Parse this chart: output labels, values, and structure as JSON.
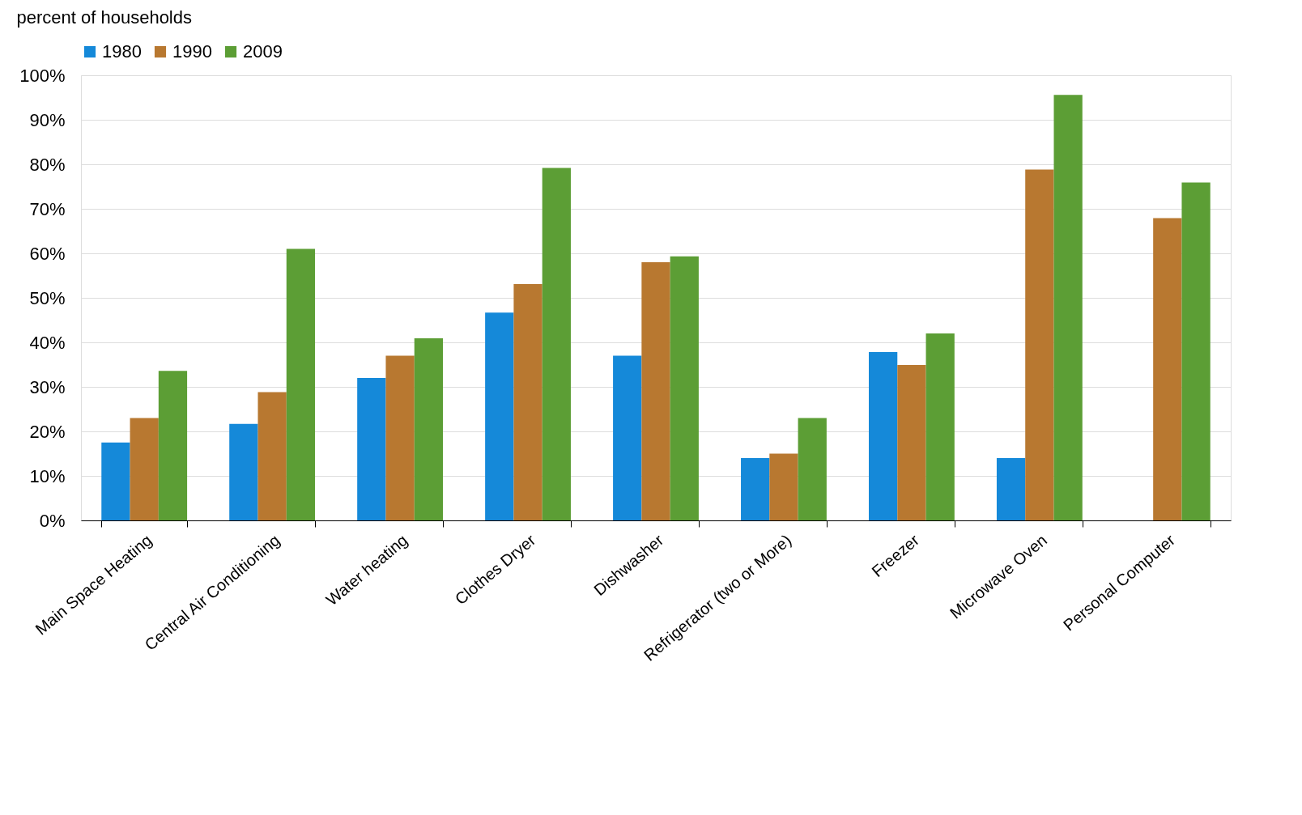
{
  "chart_data": {
    "type": "bar",
    "ylabel": "percent of households",
    "categories": [
      "Main Space Heating",
      "Central Air Conditioning",
      "Water heating",
      "Clothes Dryer",
      "Dishwasher",
      "Refrigerator (two or More)",
      "Freezer",
      "Microwave Oven",
      "Personal Computer"
    ],
    "series": [
      {
        "name": "1980",
        "color": "#1589d9",
        "values": [
          17.5,
          21.7,
          32,
          46.7,
          37,
          14,
          37.8,
          14,
          null
        ]
      },
      {
        "name": "1990",
        "color": "#b87830",
        "values": [
          23,
          28.8,
          37,
          53.1,
          58,
          15,
          34.9,
          78.8,
          67.9
        ]
      },
      {
        "name": "2009",
        "color": "#5c9e35",
        "values": [
          33.6,
          61,
          40.9,
          79.2,
          59.3,
          23,
          42,
          95.6,
          75.9
        ]
      }
    ],
    "ylim": [
      0,
      100
    ],
    "yticks": [
      {
        "value": 0,
        "label": "0%"
      },
      {
        "value": 10,
        "label": "10%"
      },
      {
        "value": 20,
        "label": "20%"
      },
      {
        "value": 30,
        "label": "30%"
      },
      {
        "value": 40,
        "label": "40%"
      },
      {
        "value": 50,
        "label": "50%"
      },
      {
        "value": 60,
        "label": "60%"
      },
      {
        "value": 70,
        "label": "70%"
      },
      {
        "value": 80,
        "label": "80%"
      },
      {
        "value": 90,
        "label": "90%"
      },
      {
        "value": 100,
        "label": "100%"
      }
    ],
    "grid": "y",
    "legend": "top"
  }
}
